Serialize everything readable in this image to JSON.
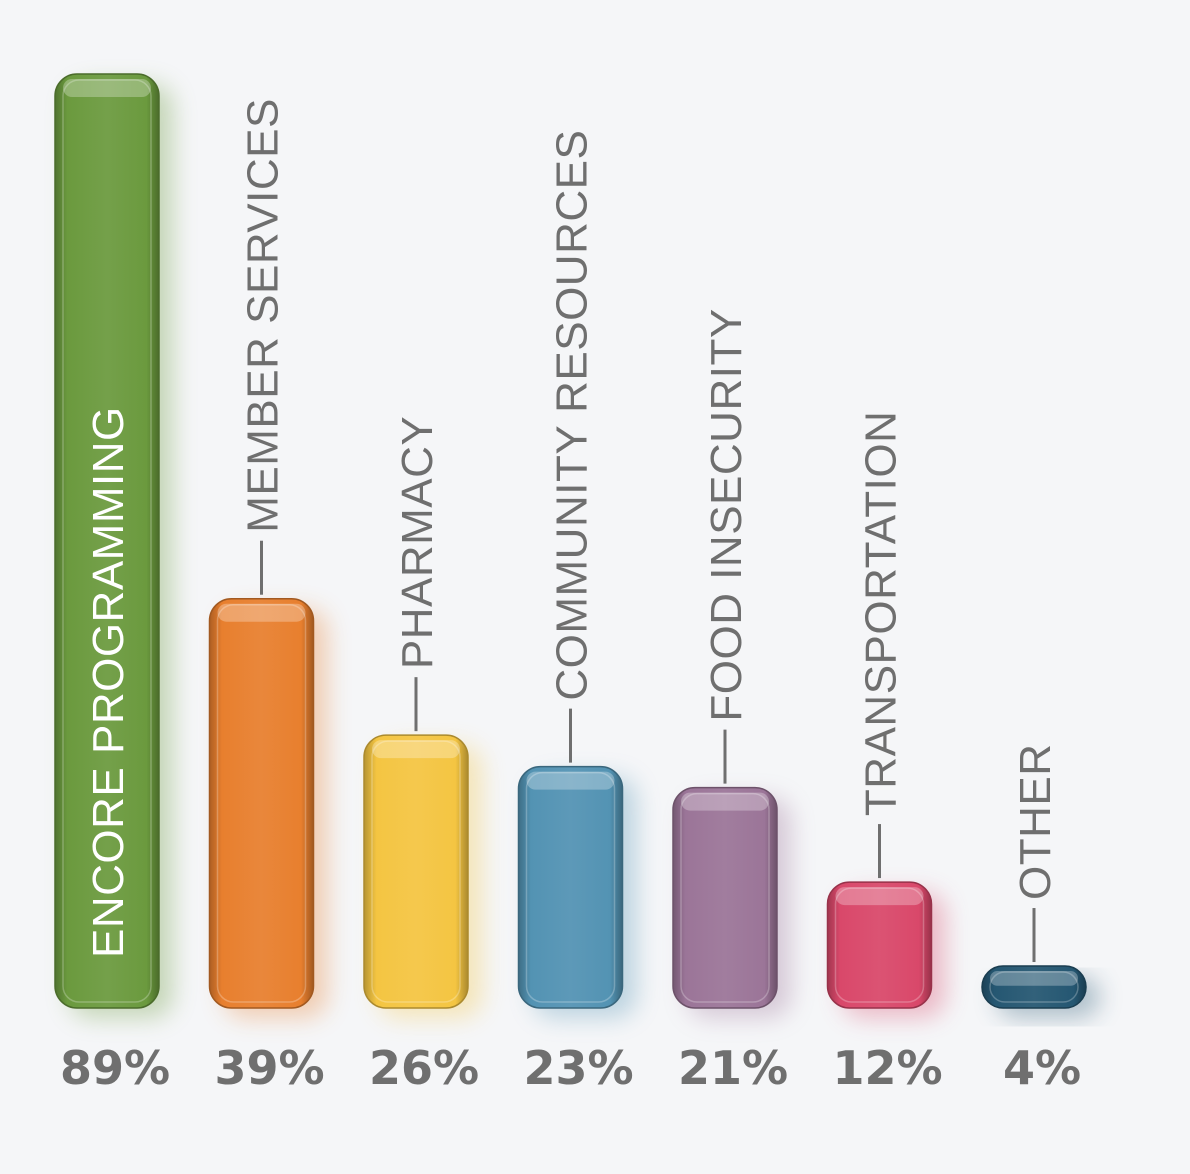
{
  "chart_data": {
    "type": "bar",
    "title": "",
    "xlabel": "",
    "ylabel": "",
    "ylim": [
      0,
      89
    ],
    "grid": false,
    "value_suffix": "%",
    "categories": [
      "ENCORE PROGRAMMING",
      "MEMBER SERVICES",
      "PHARMACY",
      "COMMUNITY RESOURCES",
      "FOOD INSECURITY",
      "TRANSPORTATION",
      "OTHER"
    ],
    "values": [
      89,
      39,
      26,
      23,
      21,
      12,
      4
    ],
    "value_labels": [
      "89%",
      "39%",
      "26%",
      "23%",
      "21%",
      "12%",
      "4%"
    ],
    "colors": [
      "#6b9a3e",
      "#e87f2e",
      "#f4c542",
      "#5393b3",
      "#9b7598",
      "#d9486a",
      "#255772"
    ],
    "label_color": "#6f6f6f",
    "label_color_inside": "#ffffff",
    "value_label_color": "#6f6f6f",
    "background": "#f5f6f8"
  }
}
